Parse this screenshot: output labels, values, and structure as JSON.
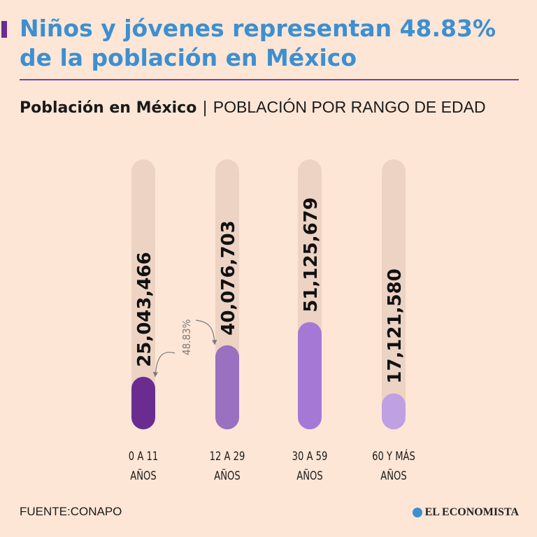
{
  "header": {
    "title_line1": "Niños y jóvenes representan 48.83%",
    "title_line2": "de la población en México",
    "subtitle_bold": "Población en México",
    "subtitle_sep": "|",
    "subtitle_light": "POBLACIÓN POR RANGO DE EDAD"
  },
  "footer": {
    "source": "FUENTE:CONAPO",
    "brand": "EL ECONOMISTA",
    "brand_icon": "globe-icon"
  },
  "colors": {
    "background": "#fde6d6",
    "title": "#3d8fd0",
    "track": "#ecd3c4",
    "bars": [
      "#6a2c91",
      "#9a70c0",
      "#a678d6",
      "#bfa0e2"
    ]
  },
  "chart_data": {
    "type": "bar",
    "categories": [
      "0 A 11 AÑOS",
      "12 A 29 AÑOS",
      "30 A 59 AÑOS",
      "60 Y MÁS AÑOS"
    ],
    "category_lines": [
      [
        "0 A 11",
        "AÑOS"
      ],
      [
        "12 A 29",
        "AÑOS"
      ],
      [
        "30 A 59",
        "AÑOS"
      ],
      [
        "60 Y MÁS",
        "AÑOS"
      ]
    ],
    "values": [
      25043466,
      40076703,
      51125679,
      17121580
    ],
    "value_labels": [
      "25,043,466",
      "40,076,703",
      "51,125,679",
      "17,121,580"
    ],
    "annotation": "48.83%",
    "title": "Población en México",
    "subtitle": "POBLACIÓN POR RANGO DE EDAD",
    "xlabel": "",
    "ylabel": "",
    "orientation": "vertical",
    "grid": false,
    "legend": "none"
  }
}
